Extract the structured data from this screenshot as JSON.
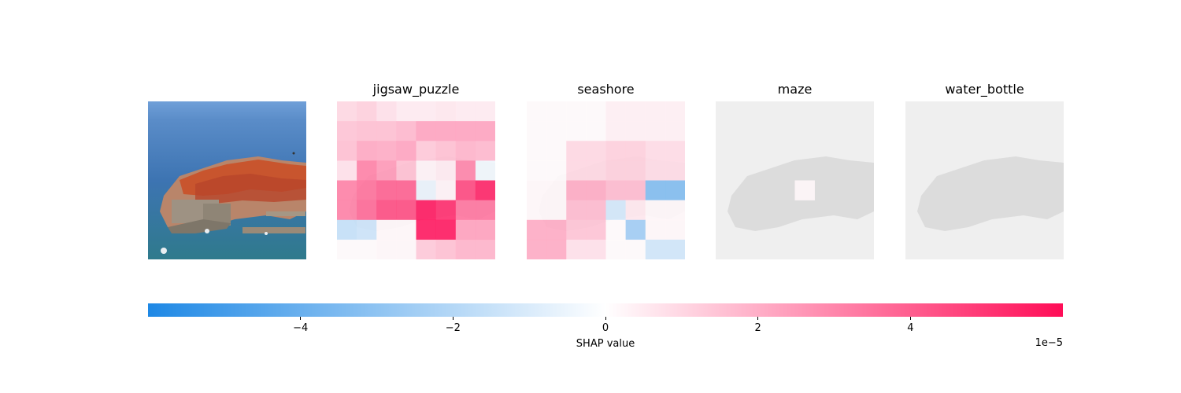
{
  "chart_data": {
    "type": "heatmap",
    "subtype": "SHAP image explanation",
    "grid": "8x8",
    "panels": [
      {
        "title": "jigsaw_puzzle",
        "values": [
          [
            1.0,
            1.2,
            0.8,
            0.5,
            0.5,
            0.6,
            0.5,
            0.5
          ],
          [
            1.5,
            1.6,
            1.6,
            1.8,
            2.3,
            2.3,
            2.3,
            2.3
          ],
          [
            1.6,
            2.2,
            2.1,
            2.3,
            1.4,
            1.6,
            1.9,
            1.8
          ],
          [
            0.8,
            3.2,
            2.6,
            1.6,
            0.3,
            0.5,
            3.1,
            -0.4
          ],
          [
            3.2,
            3.6,
            4.0,
            4.0,
            -0.6,
            0.3,
            4.6,
            5.5
          ],
          [
            3.2,
            3.8,
            4.5,
            4.5,
            5.8,
            5.3,
            3.5,
            3.5
          ],
          [
            -1.6,
            -1.4,
            0.2,
            0.2,
            5.8,
            5.8,
            2.4,
            2.4
          ],
          [
            0.1,
            0.1,
            0.2,
            0.2,
            1.4,
            1.6,
            1.9,
            1.9
          ]
        ]
      },
      {
        "title": "seashore",
        "values": [
          [
            0.1,
            0.1,
            0.1,
            0.1,
            0.4,
            0.4,
            0.4,
            0.4
          ],
          [
            0.1,
            0.1,
            0.1,
            0.1,
            0.4,
            0.4,
            0.4,
            0.4
          ],
          [
            0.1,
            0.1,
            1.0,
            1.0,
            1.2,
            1.2,
            0.9,
            0.9
          ],
          [
            0.1,
            0.1,
            1.0,
            1.0,
            1.2,
            1.2,
            0.9,
            0.9
          ],
          [
            0.2,
            0.2,
            2.1,
            2.1,
            1.7,
            1.7,
            -3.4,
            -3.4
          ],
          [
            0.2,
            0.2,
            1.7,
            1.7,
            -1.2,
            0.6,
            0.2,
            0.2
          ],
          [
            2.1,
            2.1,
            1.5,
            1.5,
            0.1,
            -2.6,
            0.2,
            0.2
          ],
          [
            2.1,
            2.1,
            0.8,
            0.8,
            0.1,
            0.1,
            -1.3,
            -1.3
          ]
        ]
      },
      {
        "title": "maze",
        "values": [
          [
            0.0,
            0.0,
            0.0,
            0.0,
            0.0,
            0.0,
            0.0,
            0.0
          ],
          [
            0.0,
            0.0,
            0.0,
            0.0,
            0.0,
            0.0,
            0.0,
            0.0
          ],
          [
            0.0,
            0.0,
            0.0,
            0.0,
            0.0,
            0.0,
            0.0,
            0.0
          ],
          [
            0.0,
            0.0,
            0.0,
            0.0,
            0.0,
            0.0,
            0.0,
            0.0
          ],
          [
            0.0,
            0.0,
            0.0,
            0.0,
            0.2,
            0.0,
            0.0,
            0.0
          ],
          [
            0.0,
            0.0,
            0.0,
            0.0,
            0.0,
            0.0,
            0.0,
            0.0
          ],
          [
            0.0,
            0.0,
            0.0,
            0.0,
            0.0,
            0.0,
            0.0,
            0.0
          ],
          [
            0.0,
            0.0,
            0.0,
            0.0,
            0.0,
            0.0,
            0.0,
            0.0
          ]
        ]
      },
      {
        "title": "water_bottle",
        "values": [
          [
            0.0,
            0.0,
            0.0,
            0.0,
            0.0,
            0.0,
            0.0,
            0.0
          ],
          [
            0.0,
            0.0,
            0.0,
            0.0,
            0.0,
            0.0,
            0.0,
            0.0
          ],
          [
            0.0,
            0.0,
            0.0,
            0.0,
            0.0,
            0.0,
            0.0,
            0.0
          ],
          [
            0.0,
            0.0,
            0.0,
            0.0,
            0.0,
            0.0,
            0.0,
            0.0
          ],
          [
            0.0,
            0.0,
            0.0,
            0.0,
            0.0,
            0.0,
            0.0,
            0.0
          ],
          [
            0.0,
            0.0,
            0.0,
            0.0,
            0.0,
            0.0,
            0.0,
            0.0
          ],
          [
            0.0,
            0.0,
            0.0,
            0.0,
            0.0,
            0.0,
            0.0,
            0.0
          ],
          [
            0.0,
            0.0,
            0.0,
            0.0,
            0.0,
            0.0,
            0.0,
            0.0
          ]
        ]
      }
    ],
    "colorbar": {
      "label": "SHAP value",
      "offset_text": "1e−5",
      "range": [
        -6,
        6
      ],
      "ticks": [
        -4,
        -2,
        0,
        2,
        4
      ],
      "tick_labels": [
        "−4",
        "−2",
        "0",
        "2",
        "4"
      ],
      "colors": {
        "negative": "#1e88e5",
        "zero": "#ffffff",
        "positive": "#ff0d57"
      }
    }
  },
  "image": {
    "description_icon": "coastal-town-photo"
  }
}
